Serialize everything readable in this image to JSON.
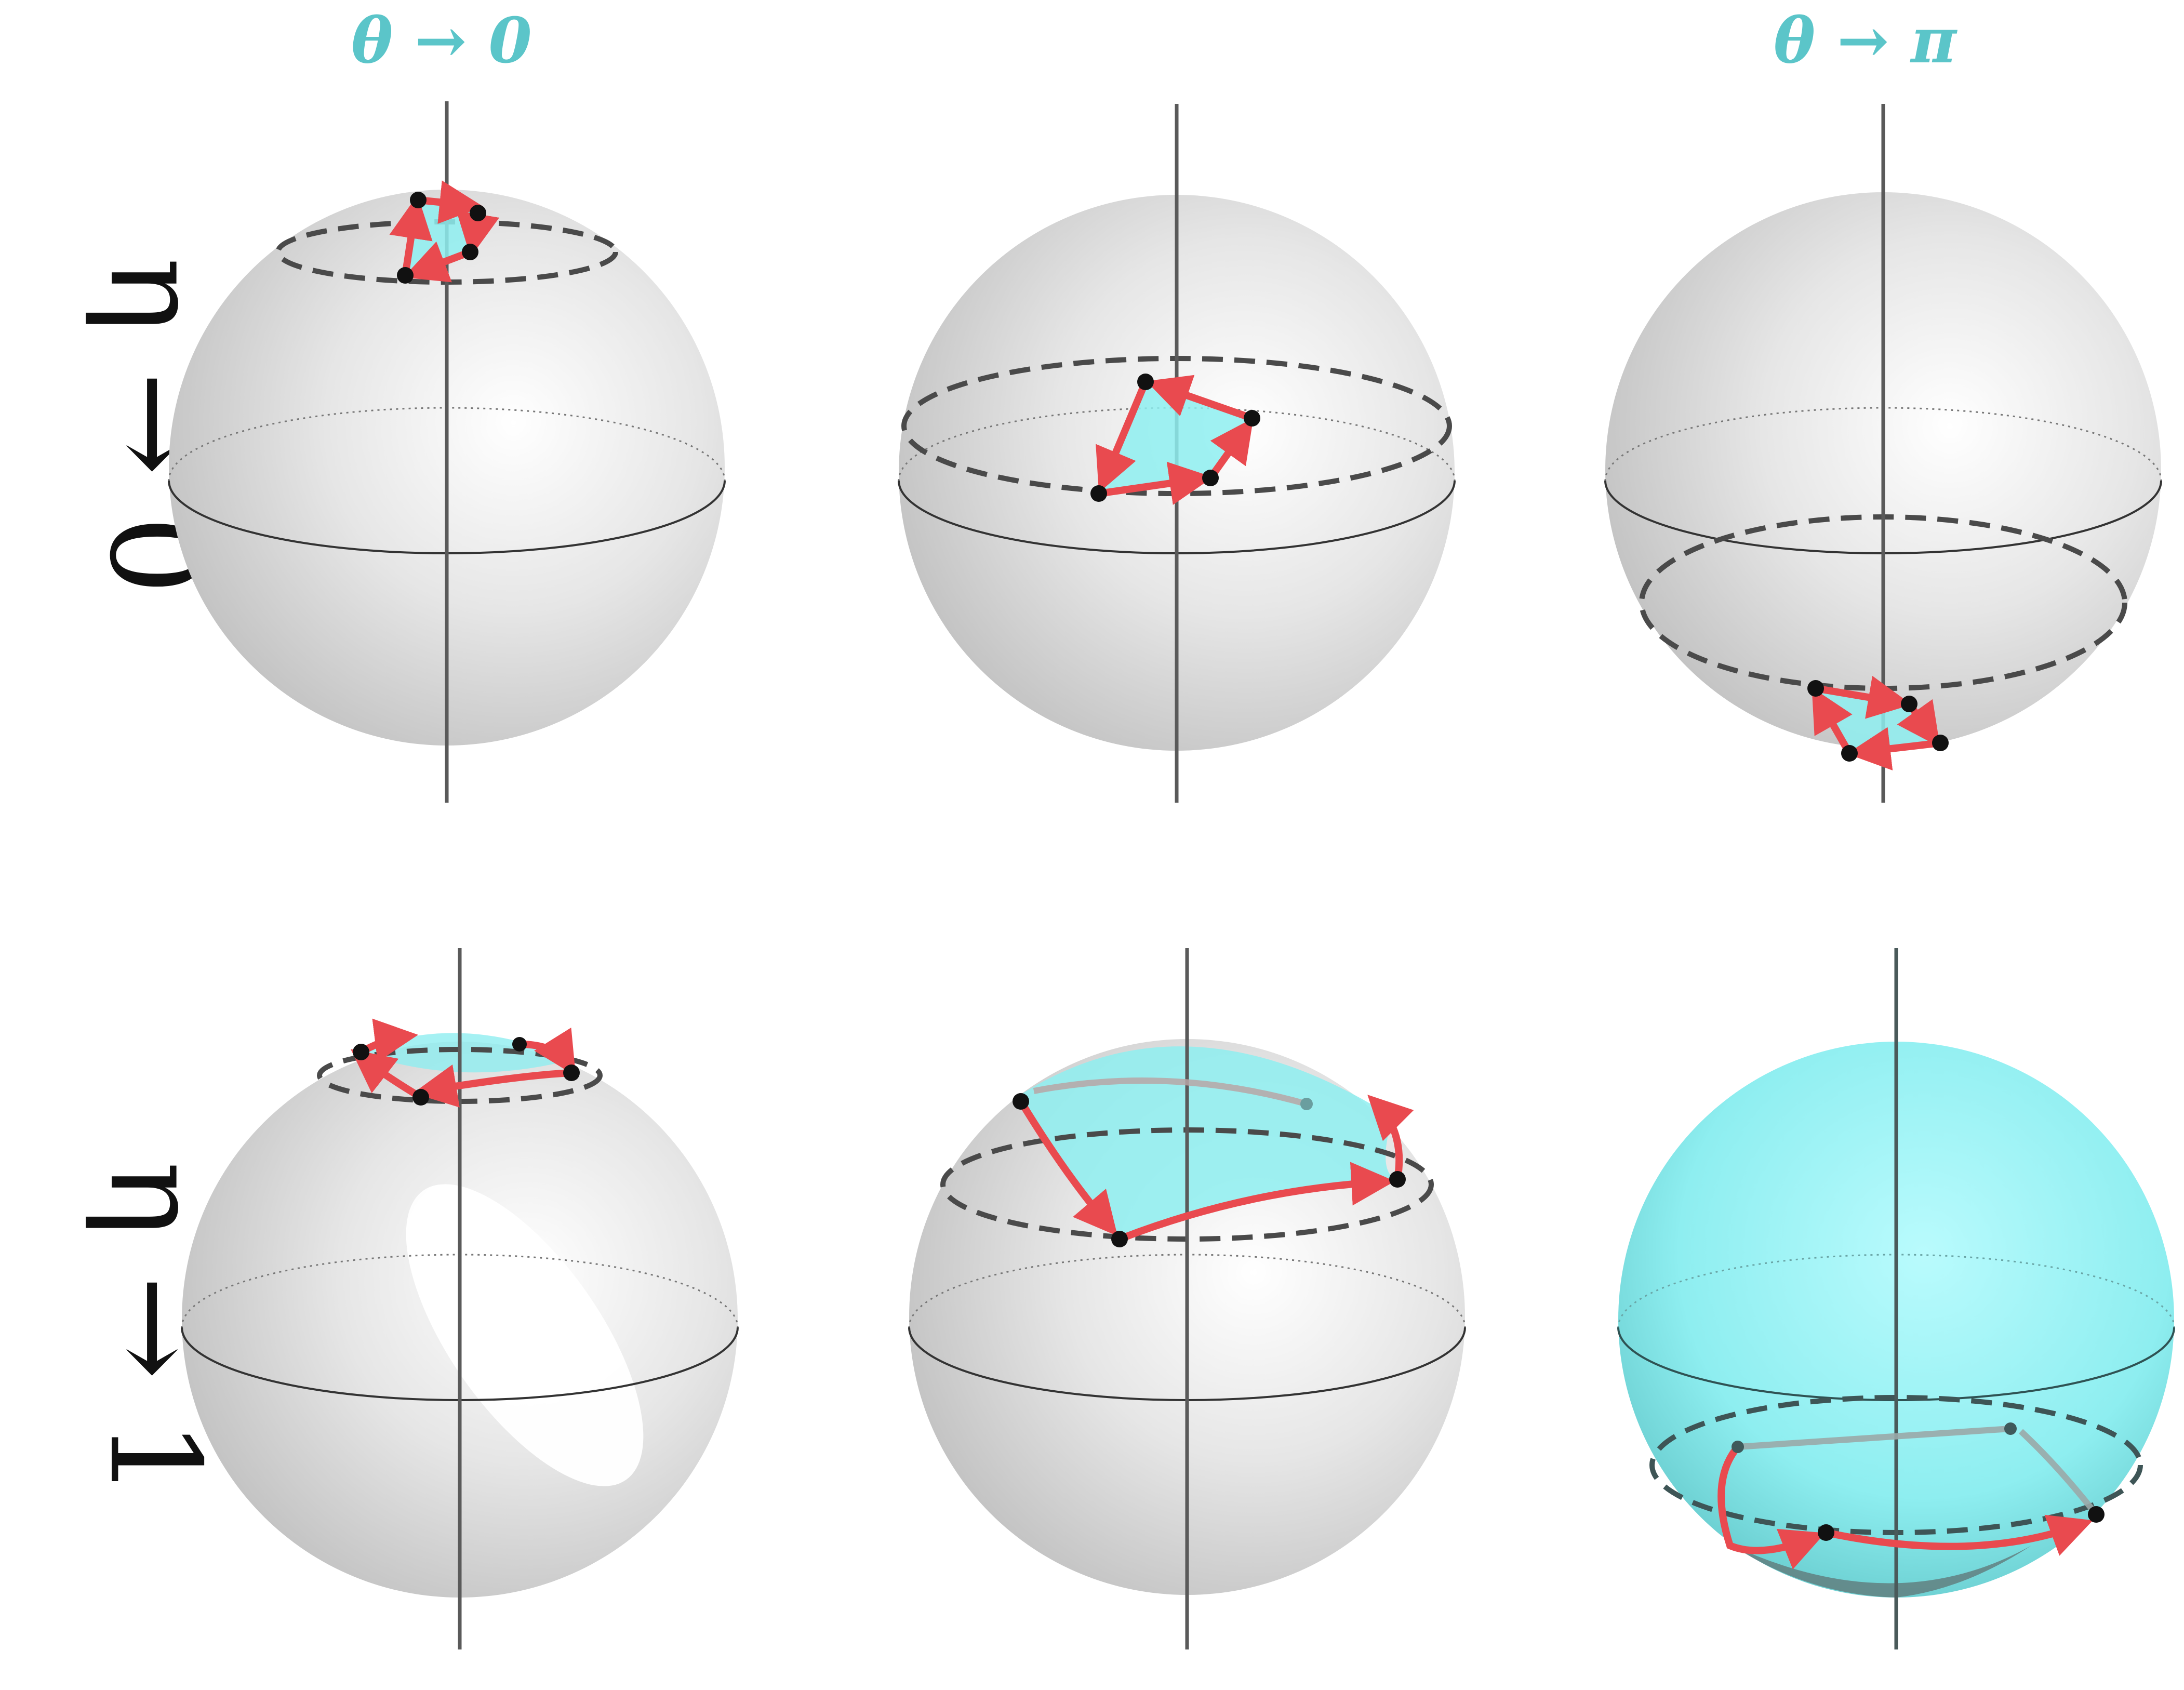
{
  "column_labels": [
    "θ → 0",
    "θ → π"
  ],
  "row_labels": [
    "η → 0",
    "η → 1"
  ],
  "colors": {
    "accent": "#5bc5c9",
    "path_arrow": "#e94a4f",
    "vertex_dot": "#111111",
    "sphere_fill": "#d9d9d9",
    "enclosed_area_fill": "#8eeef0",
    "axis_line": "#5a5a5a",
    "dashed_circle": "#4a4a4a"
  },
  "panels": [
    {
      "id": "eta0-theta0",
      "row": 0,
      "col": 0,
      "loop_position": "near north pole",
      "shaded_area": "small loop only"
    },
    {
      "id": "eta0-thetamid",
      "row": 0,
      "col": 1,
      "loop_position": "upper hemisphere",
      "shaded_area": "small loop only"
    },
    {
      "id": "eta0-thetapi",
      "row": 0,
      "col": 2,
      "loop_position": "near south pole",
      "shaded_area": "small loop only"
    },
    {
      "id": "eta1-theta0",
      "row": 1,
      "col": 0,
      "loop_position": "near north pole",
      "shaded_area": "polar cap"
    },
    {
      "id": "eta1-thetamid",
      "row": 1,
      "col": 1,
      "loop_position": "upper hemisphere",
      "shaded_area": "large cap"
    },
    {
      "id": "eta1-thetapi",
      "row": 1,
      "col": 2,
      "loop_position": "near south pole",
      "shaded_area": "most of sphere"
    }
  ]
}
